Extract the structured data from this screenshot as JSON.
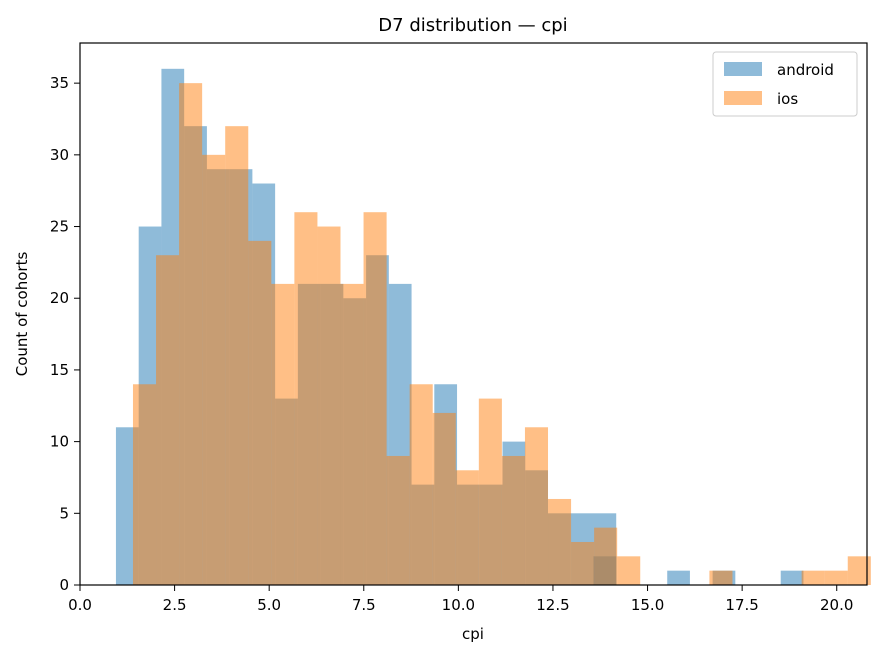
{
  "chart_data": {
    "type": "histogram",
    "title": "D7 distribution — cpi",
    "xlabel": "cpi",
    "ylabel": "Count of cohorts",
    "xlim": [
      0,
      20.8
    ],
    "ylim": [
      0,
      37.8
    ],
    "xticks": [
      0,
      2.5,
      5,
      7.5,
      10,
      12.5,
      15,
      17.5,
      20
    ],
    "xtick_labels": [
      "0.0",
      "2.5",
      "5.0",
      "7.5",
      "10.0",
      "12.5",
      "15.0",
      "17.5",
      "20.0"
    ],
    "yticks": [
      0,
      5,
      10,
      15,
      20,
      25,
      30,
      35
    ],
    "ytick_labels": [
      "0",
      "5",
      "10",
      "15",
      "20",
      "25",
      "30",
      "35"
    ],
    "grid": false,
    "legend_position": "top-right",
    "series": [
      {
        "name": "android",
        "color": "#1f77b4",
        "opacity": 0.5,
        "bin_start": 0.95,
        "bin_width": 0.601,
        "counts": [
          11,
          25,
          36,
          32,
          29,
          29,
          28,
          13,
          21,
          21,
          20,
          23,
          21,
          7,
          14,
          7,
          7,
          10,
          8,
          5,
          5,
          5,
          0,
          0,
          0,
          0,
          0,
          0,
          0,
          0,
          0,
          0
        ]
      },
      {
        "name": "ios",
        "color": "#ff7f0e",
        "opacity": 0.5,
        "bin_start": 1.4,
        "bin_width": 0.6094,
        "counts": [
          14,
          23,
          35,
          30,
          32,
          24,
          21,
          26,
          25,
          21,
          26,
          9,
          14,
          12,
          8,
          13,
          9,
          11,
          6,
          3,
          4,
          2,
          0,
          0,
          0,
          1,
          0,
          0,
          0,
          1,
          1,
          2
        ]
      }
    ],
    "overlay_bins": [
      {
        "x0": 15.52,
        "x1": 16.12,
        "count": 1,
        "series": "android"
      },
      {
        "x0": 16.72,
        "x1": 17.32,
        "count": 1,
        "series": "android"
      },
      {
        "x0": 18.52,
        "x1": 19.12,
        "count": 1,
        "series": "android"
      },
      {
        "x0": 13.57,
        "x1": 14.18,
        "count": 2,
        "series": "android"
      }
    ]
  }
}
